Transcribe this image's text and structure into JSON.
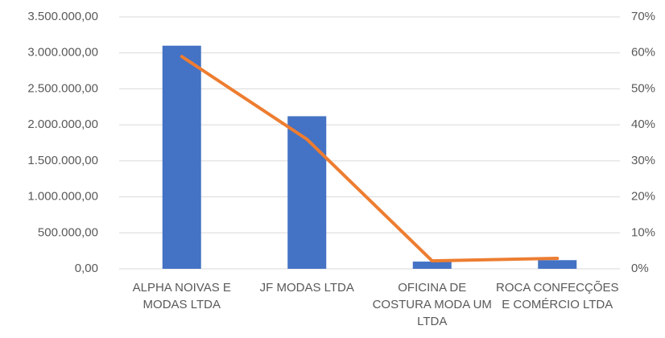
{
  "chart_data": {
    "type": "bar-line",
    "categories": [
      "ALPHA NOIVAS E MODAS LTDA",
      "JF MODAS LTDA",
      "OFICINA DE COSTURA MODA UM LTDA",
      "ROCA CONFECÇÕES E COMÉRCIO LTDA"
    ],
    "series": [
      {
        "type": "bar",
        "color": "#4472c4",
        "values": [
          3100000,
          2120000,
          100000,
          120000
        ]
      },
      {
        "type": "line",
        "color": "#ed7d31",
        "axis": "y2",
        "values": [
          59,
          36,
          2.2,
          2.9
        ]
      }
    ],
    "ylim": [
      0,
      3500000
    ],
    "yticks": [
      {
        "value": 0,
        "label": "0,00"
      },
      {
        "value": 500000,
        "label": "500.000,00"
      },
      {
        "value": 1000000,
        "label": "1.000.000,00"
      },
      {
        "value": 1500000,
        "label": "1.500.000,00"
      },
      {
        "value": 2000000,
        "label": "2.000.000,00"
      },
      {
        "value": 2500000,
        "label": "2.500.000,00"
      },
      {
        "value": 3000000,
        "label": "3.000.000,00"
      },
      {
        "value": 3500000,
        "label": "3.500.000,00"
      }
    ],
    "y2lim": [
      0,
      70
    ],
    "y2ticks": [
      {
        "value": 0,
        "label": "0%"
      },
      {
        "value": 10,
        "label": "10%"
      },
      {
        "value": 20,
        "label": "20%"
      },
      {
        "value": 30,
        "label": "30%"
      },
      {
        "value": 40,
        "label": "40%"
      },
      {
        "value": 50,
        "label": "50%"
      },
      {
        "value": 60,
        "label": "60%"
      },
      {
        "value": 70,
        "label": "70%"
      }
    ],
    "grid": true
  }
}
